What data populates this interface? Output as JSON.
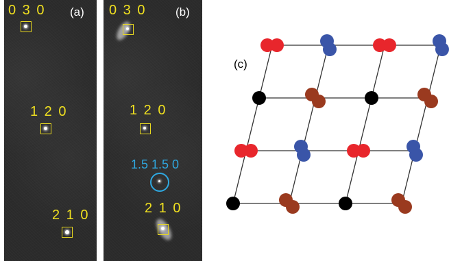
{
  "panels": {
    "a": {
      "label": "(a)",
      "spots": [
        {
          "hkl": "0 3 0"
        },
        {
          "hkl": "1 2 0"
        },
        {
          "hkl": "2 1 0"
        }
      ]
    },
    "b": {
      "label": "(b)",
      "spots": [
        {
          "hkl": "0 3 0"
        },
        {
          "hkl": "1 2 0"
        },
        {
          "hkl": "1.5 1.5 0"
        },
        {
          "hkl": "2 1 0"
        }
      ]
    },
    "c": {
      "label": "(c)",
      "colors": {
        "red": "#e8262c",
        "blue": "#3a55a8",
        "black": "#000000",
        "brown": "#9a3a1f",
        "line": "#333333"
      }
    }
  }
}
